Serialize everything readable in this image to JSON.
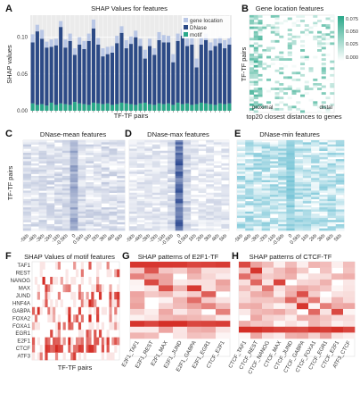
{
  "panels": {
    "A": {
      "label": "A",
      "title": "SHAP Values for features",
      "xlabel": "TF-TF pairs",
      "ylabel": "SHAP values",
      "legend": [
        "gene location",
        "DNase",
        "motif"
      ]
    },
    "B": {
      "label": "B",
      "title": "Gene location features",
      "ylabel": "TF-TF pairs",
      "left_note": "proximal",
      "right_note": "distal",
      "xlabel": "top20 closest distances to genes"
    },
    "C": {
      "label": "C",
      "title": "DNase-mean features",
      "ylabel": "TF-TF pairs"
    },
    "D": {
      "label": "D",
      "title": "DNase-max features"
    },
    "E": {
      "label": "E",
      "title": "DNase-min features"
    },
    "F": {
      "label": "F",
      "title": "SHAP Values of motif features",
      "xlabel": "TF-TF pairs"
    },
    "G": {
      "label": "G",
      "title": "SHAP patterns of E2F1-TF"
    },
    "H": {
      "label": "H",
      "title": "SHAP patterns of CTCF-TF"
    }
  },
  "colors": {
    "gene_location": "#b9c7e6",
    "dnase": "#2c4a86",
    "motif": "#2aa88a",
    "heat_green": "#2aa88a",
    "heat_blue": "#23418c",
    "heat_cyan": "#2aa3bf",
    "heat_red": "#d42a22"
  },
  "chart_data": [
    {
      "type": "bar",
      "panel": "A",
      "title": "SHAP Values for features",
      "xlabel": "TF-TF pairs",
      "ylabel": "SHAP values",
      "ylim": [
        0,
        0.13
      ],
      "yticks": [
        "0.00",
        "0.05",
        "0.10"
      ],
      "legend_position": "top-right",
      "series": [
        {
          "name": "motif",
          "values": [
            0.01,
            0.008,
            0.009,
            0.007,
            0.011,
            0.008,
            0.01,
            0.009,
            0.008,
            0.012,
            0.01,
            0.009,
            0.008,
            0.011,
            0.01,
            0.009,
            0.01,
            0.008,
            0.009,
            0.011,
            0.01,
            0.009,
            0.008,
            0.01,
            0.011,
            0.009,
            0.008,
            0.01,
            0.009,
            0.01,
            0.008,
            0.011,
            0.009,
            0.01,
            0.008,
            0.009,
            0.011,
            0.01,
            0.009,
            0.008,
            0.01,
            0.009,
            0.01
          ]
        },
        {
          "name": "DNase",
          "values": [
            0.083,
            0.1,
            0.089,
            0.079,
            0.076,
            0.081,
            0.104,
            0.077,
            0.087,
            0.064,
            0.08,
            0.075,
            0.087,
            0.101,
            0.08,
            0.065,
            0.067,
            0.071,
            0.083,
            0.095,
            0.075,
            0.082,
            0.092,
            0.078,
            0.06,
            0.079,
            0.068,
            0.086,
            0.084,
            0.083,
            0.058,
            0.084,
            0.093,
            0.078,
            0.082,
            0.05,
            0.079,
            0.086,
            0.073,
            0.08,
            0.082,
            0.076,
            0.08
          ]
        },
        {
          "name": "gene location",
          "values": [
            0.011,
            0.009,
            0.012,
            0.008,
            0.01,
            0.009,
            0.008,
            0.011,
            0.01,
            0.009,
            0.01,
            0.011,
            0.01,
            0.012,
            0.009,
            0.011,
            0.01,
            0.009,
            0.01,
            0.009,
            0.011,
            0.01,
            0.009,
            0.01,
            0.012,
            0.01,
            0.009,
            0.011,
            0.01,
            0.009,
            0.011,
            0.01,
            0.009,
            0.011,
            0.01,
            0.012,
            0.01,
            0.009,
            0.011,
            0.01,
            0.009,
            0.011,
            0.01
          ]
        }
      ]
    },
    {
      "type": "heatmap",
      "panel": "B",
      "title": "Gene location features",
      "ylabel": "TF-TF pairs",
      "xlabel": "top20 closest distances to genes",
      "colorbar_ticks": [
        "0.075",
        "0.050",
        "0.025",
        "0.000"
      ],
      "colorbar_range": [
        0,
        0.085
      ]
    },
    {
      "type": "heatmap",
      "panel": "C",
      "title": "DNase-mean features",
      "ylabel": "TF-TF pairs",
      "xticks": [
        "-5kb",
        "-4kb",
        "-3kb",
        "-2kb",
        "-1kb",
        "-0.5kb",
        "0",
        "0.5kb",
        "1kb",
        "2kb",
        "3kb",
        "4kb",
        "5kb"
      ]
    },
    {
      "type": "heatmap",
      "panel": "D",
      "title": "DNase-max features",
      "xticks": [
        "-5kb",
        "-4kb",
        "-3kb",
        "-2kb",
        "-1kb",
        "-0.5kb",
        "0",
        "0.5kb",
        "1kb",
        "2kb",
        "3kb",
        "4kb",
        "5kb"
      ]
    },
    {
      "type": "heatmap",
      "panel": "E",
      "title": "DNase-min features",
      "xticks": [
        "-5kb",
        "-4kb",
        "-3kb",
        "-2kb",
        "-1kb",
        "-0.5kb",
        "0",
        "0.5kb",
        "1kb",
        "2kb",
        "3kb",
        "4kb",
        "5kb"
      ]
    },
    {
      "type": "heatmap",
      "panel": "F",
      "title": "SHAP Values of motif features",
      "xlabel": "TF-TF pairs",
      "rows": [
        "TAF1",
        "REST",
        "NANOG",
        "MAX",
        "JUND",
        "HNF4A",
        "GABPA",
        "FOXA2",
        "FOXA1",
        "EGR1",
        "E2F1",
        "CTCF",
        "ATF3"
      ]
    },
    {
      "type": "heatmap",
      "panel": "G",
      "title": "SHAP patterns of E2F1-TF",
      "columns": [
        "E2F1_TAF1",
        "E2F1_REST",
        "E2F1_MAX",
        "E2F1_JUND",
        "E2F1_GABPA",
        "E2F1_EGR1",
        "CTCF_E2F1"
      ]
    },
    {
      "type": "heatmap",
      "panel": "H",
      "title": "SHAP patterns of CTCF-TF",
      "columns": [
        "CTCF_TAF1",
        "CTCF_REST",
        "CTCF_NANOG",
        "CTCF_MAX",
        "CTCF_JUND",
        "CTCF_GABPA",
        "CTCF_FOXA1",
        "CTCF_EGR1",
        "CTCF_E2F1",
        "ATF3_CTCF"
      ]
    }
  ]
}
